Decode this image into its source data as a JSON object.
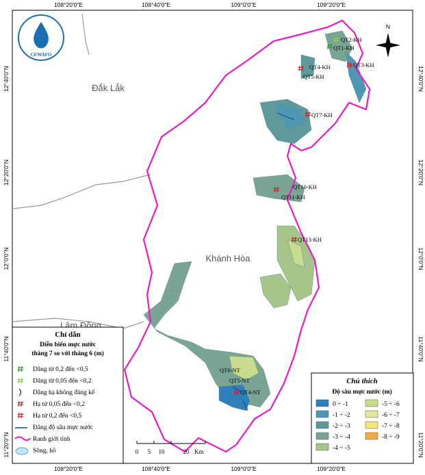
{
  "coords": {
    "top": [
      "108°20'0\"E",
      "108°40'0\"E",
      "109°0'0\"E",
      "109°20'0\"E"
    ],
    "bottom": [
      "108°20'0\"E",
      "108°40'0\"E",
      "109°0'0\"E",
      "109°20'0\"E"
    ],
    "left": [
      "12°40'0\"N",
      "12°20'0\"N",
      "12°0'0\"N",
      "11°40'0\"N",
      "11°20'0\"N"
    ],
    "right": [
      "12°40'0\"N",
      "12°20'0\"N",
      "12°0'0\"N",
      "11°40'0\"N",
      "11°20'0\"N"
    ]
  },
  "logo": "CEWAFO",
  "north": "N",
  "provinces": [
    "Đắk Lắk",
    "Khánh Hòa",
    "Lâm Đồng"
  ],
  "wells": [
    "QT2-KH",
    "QT1-KH",
    "QT3-KH",
    "QT4-KH",
    "QT5-KH",
    "QT7-KH",
    "QT10-KH",
    "QT11-KH",
    "QT13-KH",
    "QT6-NT",
    "QT5-NT",
    "QT4-NT"
  ],
  "legend": {
    "title": "Chỉ dẫn",
    "subtitle": [
      "Diễn biến mực nước",
      "tháng 7 so với tháng 6 (m)"
    ],
    "items": [
      "Dâng từ 0,2 đến <0,5",
      "Dâng từ 0,05 đến <0,2",
      "Dâng hạ không đáng kể",
      "Hạ từ 0,05 đến <0,2",
      "Hạ từ 0,2 đến <0,5",
      "Đẳng độ sâu mực nước",
      "Ranh giới tỉnh",
      "Sông, hồ"
    ]
  },
  "depth_legend": {
    "title": "Chú thích",
    "subtitle": "Độ sâu mực nước (m)",
    "classes": [
      {
        "label": "0 ÷ -1",
        "color": "#2f7fb8"
      },
      {
        "label": "-1 ÷ -2",
        "color": "#4f98b4"
      },
      {
        "label": "-2 ÷ -3",
        "color": "#5e9a9c"
      },
      {
        "label": "-3 ÷ -4",
        "color": "#7aa594"
      },
      {
        "label": "-4 ÷ -5",
        "color": "#a6c58a"
      },
      {
        "label": "-5 ÷ -6",
        "color": "#c9dc8e"
      },
      {
        "label": "-6 ÷ -7",
        "color": "#e2e79e"
      },
      {
        "label": "-7 ÷ -8",
        "color": "#f3e57e"
      },
      {
        "label": "-8 ÷ -9",
        "color": "#efae42"
      }
    ]
  },
  "scale": {
    "ticks": [
      "0",
      "5",
      "10",
      "20"
    ],
    "unit": "Km"
  }
}
